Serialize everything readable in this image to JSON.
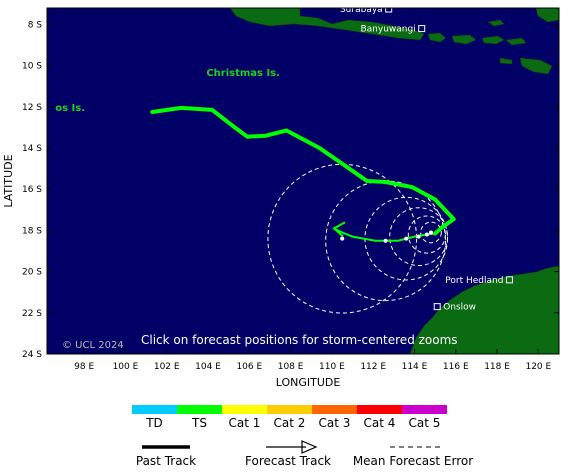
{
  "map": {
    "background_color": "#000066",
    "land_color": "#0b6b12",
    "y_axis_title": "LATITUDE",
    "x_axis_title": "LONGITUDE",
    "lat_ticks": [
      {
        "value": 8,
        "label": "8 S"
      },
      {
        "value": 10,
        "label": "10 S"
      },
      {
        "value": 12,
        "label": "12 S"
      },
      {
        "value": 14,
        "label": "14 S"
      },
      {
        "value": 16,
        "label": "16 S"
      },
      {
        "value": 18,
        "label": "18 S"
      },
      {
        "value": 20,
        "label": "20 S"
      },
      {
        "value": 22,
        "label": "22 S"
      },
      {
        "value": 24,
        "label": "24 S"
      }
    ],
    "lon_ticks": [
      {
        "value": 98,
        "label": "98 E"
      },
      {
        "value": 100,
        "label": "100 E"
      },
      {
        "value": 102,
        "label": "102 E"
      },
      {
        "value": 104,
        "label": "104 E"
      },
      {
        "value": 106,
        "label": "106 E"
      },
      {
        "value": 108,
        "label": "108 E"
      },
      {
        "value": 110,
        "label": "110 E"
      },
      {
        "value": 112,
        "label": "112 E"
      },
      {
        "value": 114,
        "label": "114 E"
      },
      {
        "value": 116,
        "label": "116 E"
      },
      {
        "value": 118,
        "label": "118 E"
      },
      {
        "value": 120,
        "label": "120 E"
      }
    ],
    "lon_range": [
      96.2,
      121.0
    ],
    "lat_range": [
      7.2,
      24.0
    ],
    "places": [
      {
        "name": "Surabaya",
        "lon": 112.75,
        "lat": 7.25
      },
      {
        "name": "Banyuwangi",
        "lon": 114.35,
        "lat": 8.2
      },
      {
        "name": "Port Hedland",
        "lon": 118.6,
        "lat": 20.4
      },
      {
        "name": "Onslow",
        "lon": 115.1,
        "lat": 21.7
      }
    ],
    "islands": [
      {
        "name": "Christmas Is.",
        "lon": 105.7,
        "lat": 10.5
      },
      {
        "name": "Cocos Is.",
        "lon": 96.6,
        "lat": 12.2,
        "visible_text": "os Is."
      }
    ],
    "copyright": "© UCL 2024",
    "instruction": "Click on forecast positions for storm-centered zooms",
    "past_track_color": "#00ff00",
    "past_track": [
      [
        101.3,
        12.25
      ],
      [
        102.7,
        12.05
      ],
      [
        104.2,
        12.15
      ],
      [
        105.3,
        13.0
      ],
      [
        105.9,
        13.45
      ],
      [
        106.8,
        13.4
      ],
      [
        107.8,
        13.15
      ],
      [
        109.4,
        14.0
      ],
      [
        110.7,
        14.9
      ],
      [
        111.7,
        15.6
      ],
      [
        112.6,
        15.65
      ],
      [
        113.9,
        15.9
      ],
      [
        115.0,
        16.5
      ],
      [
        115.9,
        17.45
      ],
      [
        115.4,
        17.8
      ],
      [
        115.0,
        18.15
      ]
    ],
    "forecast_track": [
      [
        115.0,
        18.15
      ],
      [
        114.6,
        18.2
      ],
      [
        114.0,
        18.3
      ],
      [
        113.2,
        18.5
      ],
      [
        112.1,
        18.5
      ],
      [
        111.0,
        18.3
      ],
      [
        110.5,
        18.1
      ],
      [
        110.1,
        17.9
      ]
    ],
    "error_circles": [
      {
        "lon": 114.8,
        "lat": 18.1,
        "radius_deg": 0.5
      },
      {
        "lon": 114.6,
        "lat": 18.2,
        "radius_deg": 0.9
      },
      {
        "lon": 114.2,
        "lat": 18.3,
        "radius_deg": 1.4
      },
      {
        "lon": 113.6,
        "lat": 18.4,
        "radius_deg": 2.0
      },
      {
        "lon": 112.6,
        "lat": 18.5,
        "radius_deg": 2.9
      },
      {
        "lon": 110.5,
        "lat": 18.4,
        "radius_deg": 3.6
      }
    ]
  },
  "legend": {
    "categories": [
      {
        "label": "TD",
        "color": "#00ccff"
      },
      {
        "label": "TS",
        "color": "#00ff00"
      },
      {
        "label": "Cat 1",
        "color": "#ffff00"
      },
      {
        "label": "Cat 2",
        "color": "#ffcc00"
      },
      {
        "label": "Cat 3",
        "color": "#ff6600"
      },
      {
        "label": "Cat 4",
        "color": "#ff0000"
      },
      {
        "label": "Cat 5",
        "color": "#cc00cc"
      }
    ],
    "past_track_label": "Past Track",
    "forecast_track_label": "Forecast Track",
    "error_label": "Mean Forecast Error"
  }
}
